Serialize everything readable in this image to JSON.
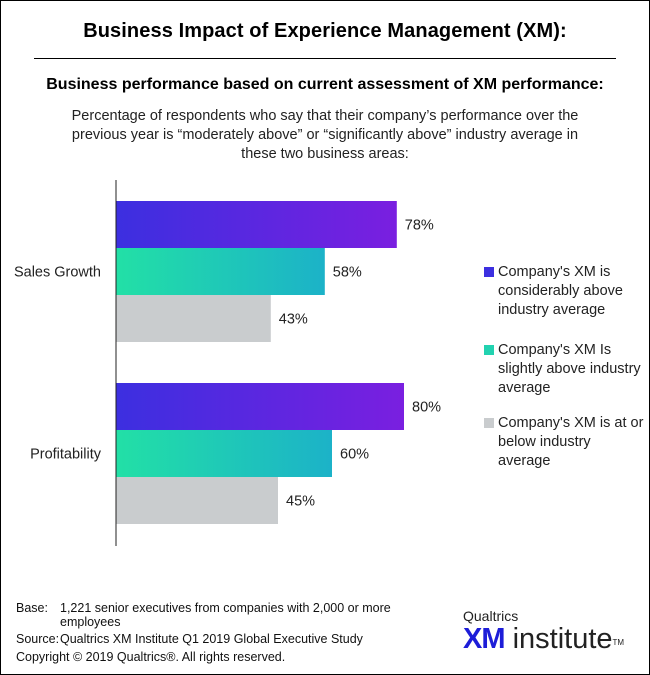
{
  "header": {
    "title": "Business Impact of Experience Management (XM):",
    "subtitle": "Business performance based on current assessment of XM performance:",
    "description": "Percentage of respondents who say that their company’s performance over the previous year is “moderately above” or “significantly above” industry average in these two business areas:"
  },
  "chart_data": {
    "type": "bar",
    "orientation": "horizontal",
    "categories": [
      "Sales Growth",
      "Profitability"
    ],
    "series": [
      {
        "name": "Company's XM is considerably above industry average",
        "values": [
          78,
          80
        ],
        "color": "#3c2fe0",
        "gradient_end": "#7a1fe0"
      },
      {
        "name": "Company's XM Is slightly above industry average",
        "values": [
          58,
          60
        ],
        "color": "#22e0a6",
        "gradient_end": "#1cb2c8"
      },
      {
        "name": "Company's XM is at or below industry average",
        "values": [
          43,
          45
        ],
        "color": "#c9ccce"
      }
    ],
    "value_suffix": "%",
    "xlim": [
      0,
      100
    ],
    "legend_position": "right",
    "grid": false
  },
  "legend": [
    {
      "label": "Company's XM is considerably above industry average",
      "color": "#3c2fe0"
    },
    {
      "label": "Company's XM Is slightly above industry average",
      "color": "#22d2b0"
    },
    {
      "label": "Company's XM is at or below industry average",
      "color": "#c9ccce"
    }
  ],
  "footer": {
    "base_label": "Base:",
    "base_text": "1,221 senior executives from companies with 2,000 or more employees",
    "source_label": "Source:",
    "source_text": "Qualtrics XM Institute Q1 2019 Global Executive Study",
    "copyright": "Copyright © 2019 Qualtrics®.  All rights reserved."
  },
  "logo": {
    "top": "Qualtrics",
    "xm": "XM",
    "word": "institute",
    "tm": "TM"
  }
}
